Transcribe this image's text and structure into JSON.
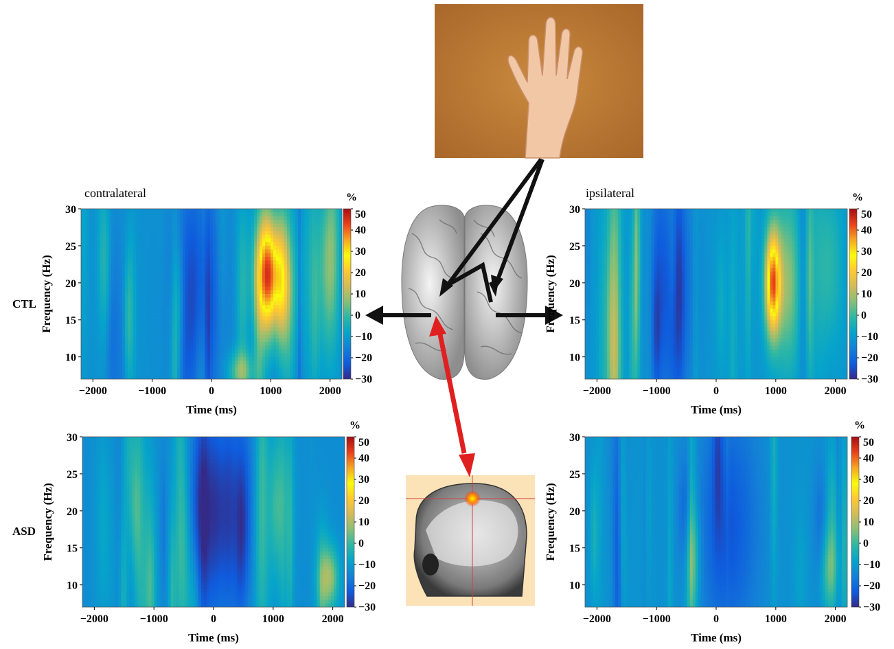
{
  "figure": {
    "row_labels": [
      "CTL",
      "ASD"
    ],
    "column_labels": [
      "contralateral",
      "ipsilateral"
    ],
    "percent_unit": "%"
  },
  "colors": {
    "colormap": [
      "#352a87",
      "#0f5cdd",
      "#1481d6",
      "#06a4ca",
      "#2eb7a4",
      "#87bf77",
      "#d1bb59",
      "#fec832",
      "#f9fb0e",
      "#f5a623",
      "#e8411a",
      "#a50f15"
    ],
    "arrow_black": "#111111",
    "arrow_red": "#e02020",
    "hand_background": "#b8732e"
  },
  "illustrations": {
    "hand": "hand-photo",
    "brain": "brain-top-view",
    "head_mri": "head-mri-sagittal"
  },
  "chart_data": [
    {
      "id": "ctl_contra",
      "type": "heatmap",
      "panel_label": "contralateral",
      "row": "CTL",
      "xlabel": "Time (ms)",
      "ylabel": "Frequency (Hz)",
      "xlim": [
        -2200,
        2200
      ],
      "ylim": [
        7,
        30
      ],
      "xticks": [
        -2000,
        -1000,
        0,
        1000,
        2000
      ],
      "yticks": [
        10,
        15,
        20,
        25,
        30
      ],
      "colorbar": {
        "label": "%",
        "ticks": [
          50,
          40,
          30,
          20,
          10,
          0,
          -10,
          -20,
          -30
        ],
        "range": [
          -30,
          50
        ]
      },
      "baseline": -12,
      "features": [
        {
          "t": 950,
          "f": 21,
          "sigma_t": 140,
          "sigma_f": 5.5,
          "amp": 55
        },
        {
          "t": 1200,
          "f": 20,
          "sigma_t": 100,
          "sigma_f": 6,
          "amp": 25
        },
        {
          "t": -250,
          "f": 18,
          "sigma_t": 320,
          "sigma_f": 12,
          "amp": -14
        },
        {
          "t": 1950,
          "f": 22,
          "sigma_t": 120,
          "sigma_f": 8,
          "amp": 15
        },
        {
          "t": 500,
          "f": 8,
          "sigma_t": 150,
          "sigma_f": 2,
          "amp": 18
        }
      ]
    },
    {
      "id": "ctl_ipsi",
      "type": "heatmap",
      "panel_label": "ipsilateral",
      "row": "CTL",
      "xlabel": "Time (ms)",
      "ylabel": "Frequency (Hz)",
      "xlim": [
        -2200,
        2200
      ],
      "ylim": [
        7,
        30
      ],
      "xticks": [
        -2000,
        -1000,
        0,
        1000,
        2000
      ],
      "yticks": [
        10,
        15,
        20,
        25,
        30
      ],
      "colorbar": {
        "label": "%",
        "ticks": [
          50,
          40,
          30,
          20,
          10,
          0,
          -10,
          -20,
          -30
        ],
        "range": [
          -30,
          50
        ]
      },
      "baseline": -11,
      "features": [
        {
          "t": 950,
          "f": 20,
          "sigma_t": 90,
          "sigma_f": 5,
          "amp": 50
        },
        {
          "t": 1200,
          "f": 20,
          "sigma_t": 150,
          "sigma_f": 8,
          "amp": 18
        },
        {
          "t": -700,
          "f": 18,
          "sigma_t": 250,
          "sigma_f": 12,
          "amp": -13
        },
        {
          "t": 1900,
          "f": 22,
          "sigma_t": 150,
          "sigma_f": 8,
          "amp": 10
        }
      ]
    },
    {
      "id": "asd_contra",
      "type": "heatmap",
      "row": "ASD",
      "xlabel": "Time (ms)",
      "ylabel": "Frequency (Hz)",
      "xlim": [
        -2200,
        2200
      ],
      "ylim": [
        7,
        30
      ],
      "xticks": [
        -2000,
        -1000,
        0,
        1000,
        2000
      ],
      "yticks": [
        10,
        15,
        20,
        25,
        30
      ],
      "colorbar": {
        "label": "%",
        "ticks": [
          50,
          40,
          30,
          20,
          10,
          0,
          -10,
          -20,
          -30
        ],
        "range": [
          -30,
          50
        ]
      },
      "baseline": -13,
      "features": [
        {
          "t": 100,
          "f": 20,
          "sigma_t": 320,
          "sigma_f": 10,
          "amp": -17
        },
        {
          "t": 1950,
          "f": 11,
          "sigma_t": 110,
          "sigma_f": 3,
          "amp": 20
        },
        {
          "t": 1100,
          "f": 22,
          "sigma_t": 150,
          "sigma_f": 8,
          "amp": 8
        }
      ]
    },
    {
      "id": "asd_ipsi",
      "type": "heatmap",
      "row": "ASD",
      "xlabel": "Time (ms)",
      "ylabel": "Frequency (Hz)",
      "xlim": [
        -2200,
        2200
      ],
      "ylim": [
        7,
        30
      ],
      "xticks": [
        -2000,
        -1000,
        0,
        1000,
        2000
      ],
      "yticks": [
        10,
        15,
        20,
        25,
        30
      ],
      "colorbar": {
        "label": "%",
        "ticks": [
          50,
          40,
          30,
          20,
          10,
          0,
          -10,
          -20,
          -30
        ],
        "range": [
          -30,
          50
        ]
      },
      "baseline": -12,
      "features": [
        {
          "t": 200,
          "f": 18,
          "sigma_t": 350,
          "sigma_f": 12,
          "amp": -12
        },
        {
          "t": -400,
          "f": 14,
          "sigma_t": 90,
          "sigma_f": 5,
          "amp": 12
        },
        {
          "t": 1900,
          "f": 12,
          "sigma_t": 110,
          "sigma_f": 4,
          "amp": 14
        }
      ]
    }
  ]
}
